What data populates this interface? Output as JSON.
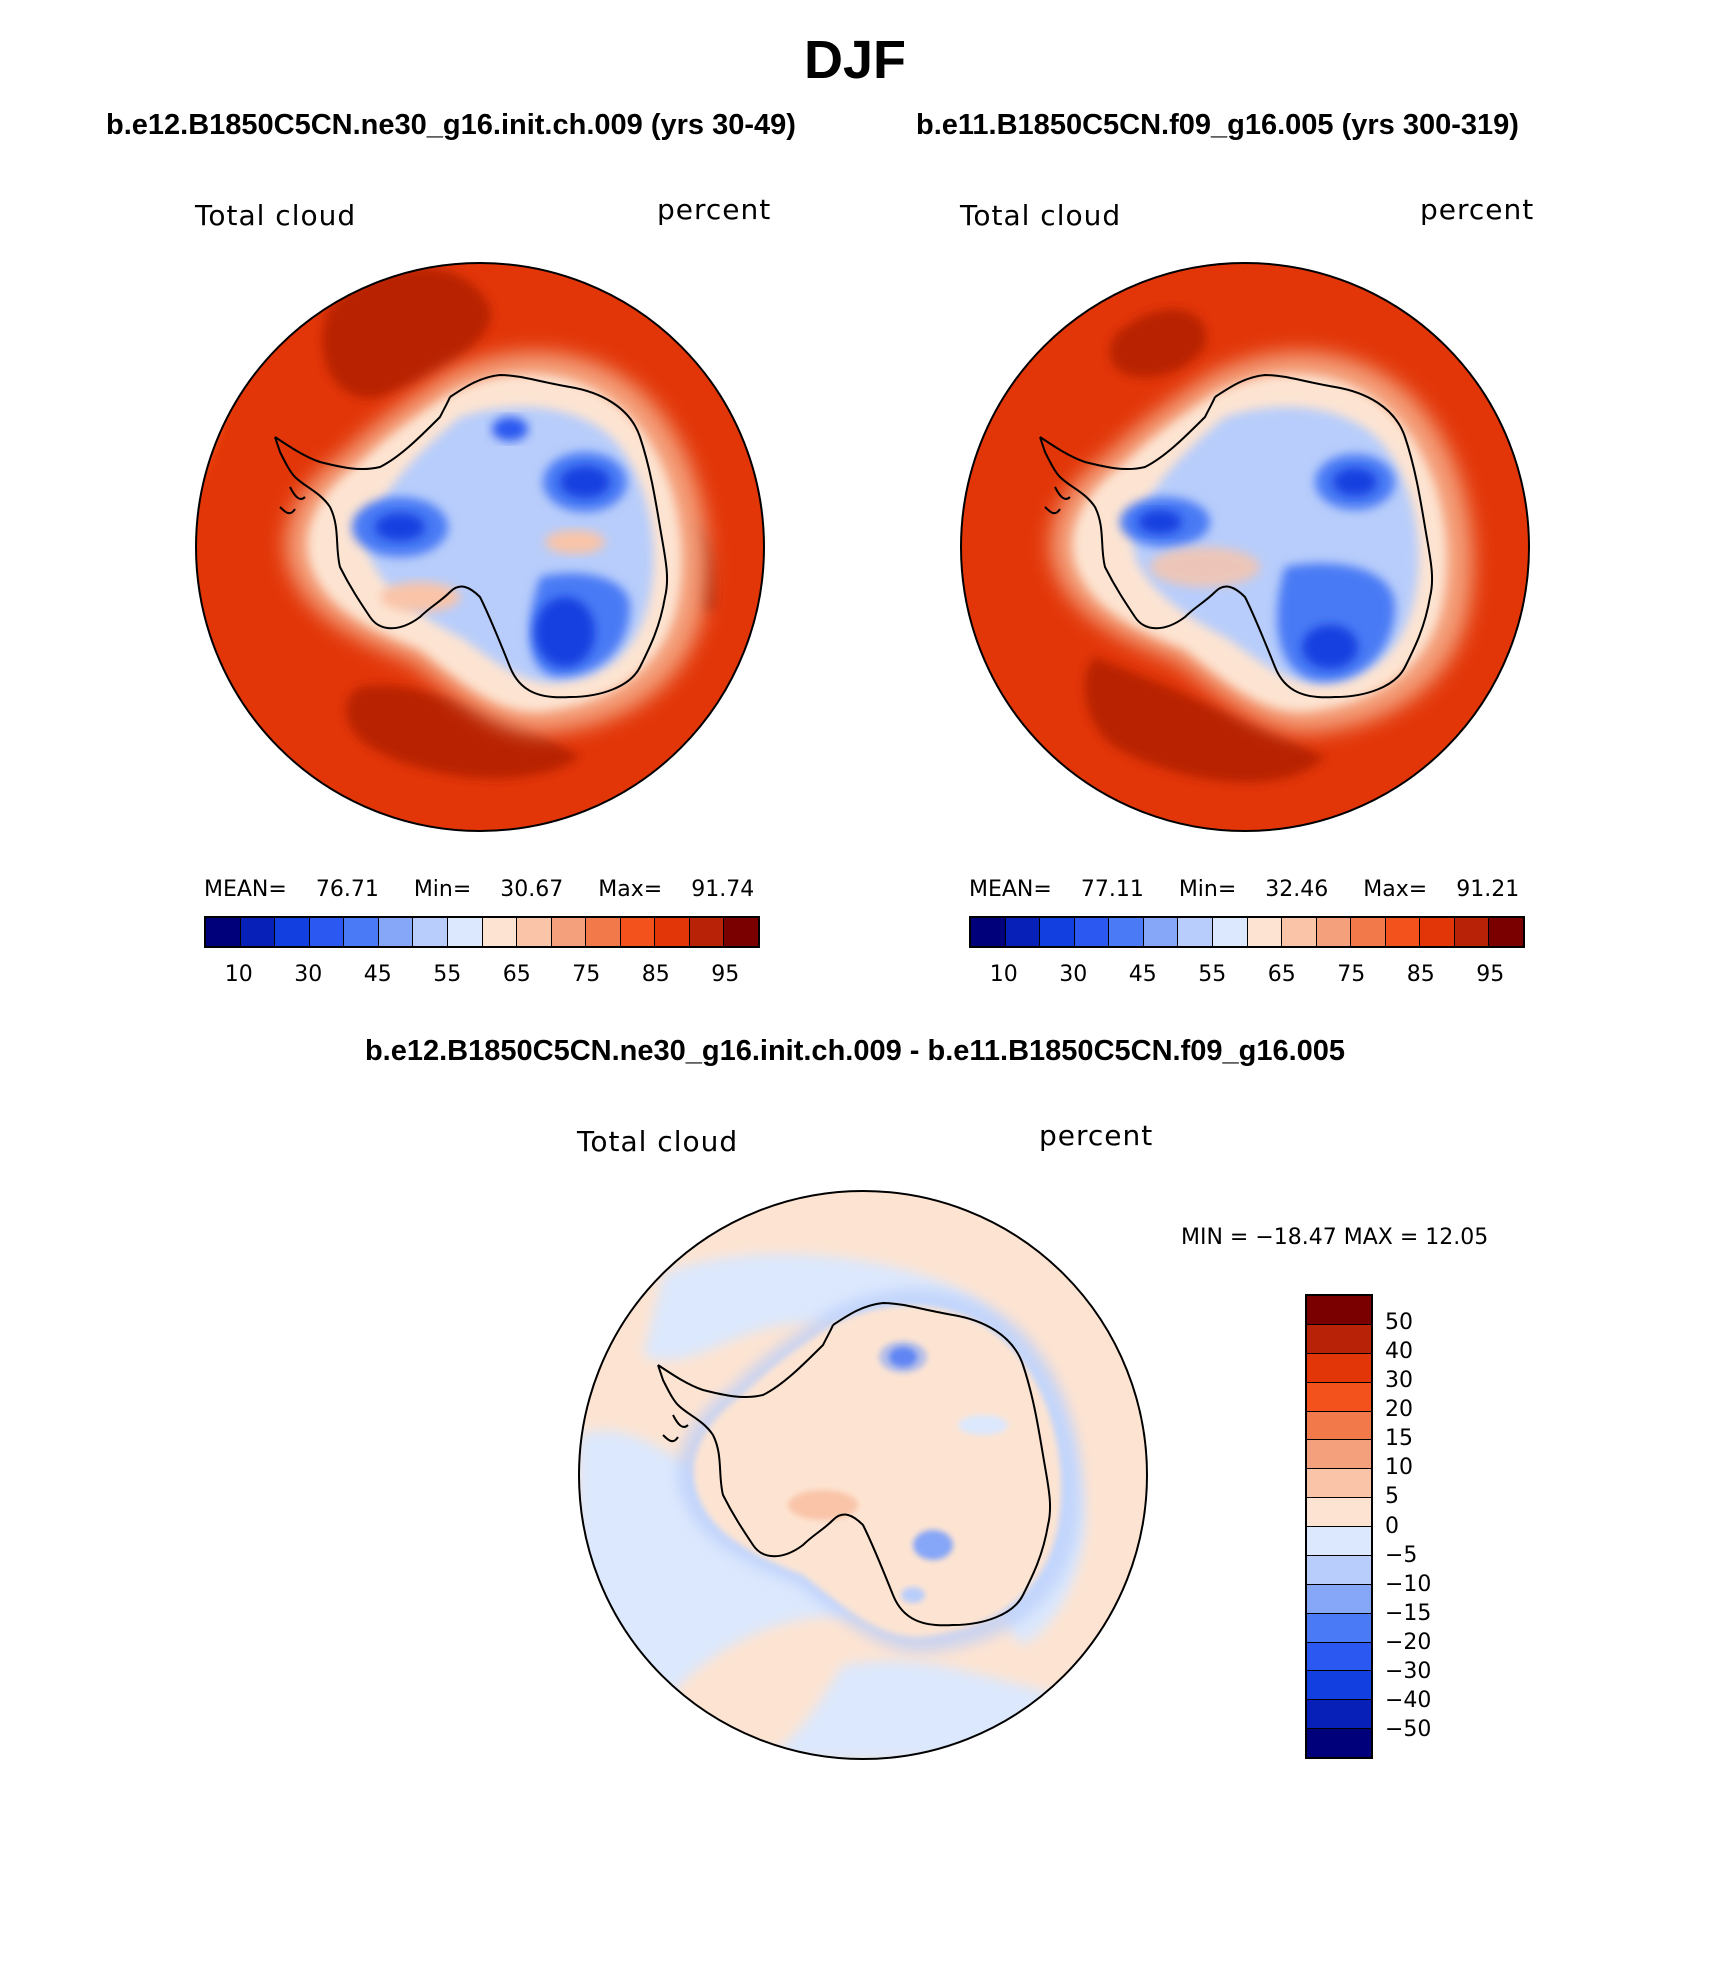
{
  "figure_title": "DJF",
  "colors": {
    "abs_scale": [
      "#00007a",
      "#0620b8",
      "#1240e0",
      "#2a58f0",
      "#4a7af5",
      "#86a6f7",
      "#b8cdfb",
      "#dce8fd",
      "#fde4d2",
      "#f9c4a8",
      "#f4a07c",
      "#f27a4a",
      "#f4521c",
      "#e23608",
      "#b82206",
      "#7a0000"
    ],
    "diff_scale": [
      "#7a0000",
      "#b82206",
      "#e23608",
      "#f4521c",
      "#f27a4a",
      "#f4a07c",
      "#f9c4a8",
      "#fde4d2",
      "#dce8fd",
      "#b8cdfb",
      "#86a6f7",
      "#4a7af5",
      "#2a58f0",
      "#1240e0",
      "#0620b8",
      "#00007a"
    ]
  },
  "panel_left": {
    "title": "b.e12.B1850C5CN.ne30_g16.init.ch.009 (yrs 30-49)",
    "var_label": "Total cloud",
    "units": "percent",
    "stats": {
      "mean_label": "MEAN=",
      "mean": "76.71",
      "min_label": "Min=",
      "min": "30.67",
      "max_label": "Max=",
      "max": "91.74"
    },
    "ticks": [
      "10",
      "30",
      "45",
      "55",
      "65",
      "75",
      "85",
      "95"
    ]
  },
  "panel_right": {
    "title": "b.e11.B1850C5CN.f09_g16.005 (yrs 300-319)",
    "var_label": "Total cloud",
    "units": "percent",
    "stats": {
      "mean_label": "MEAN=",
      "mean": "77.11",
      "min_label": "Min=",
      "min": "32.46",
      "max_label": "Max=",
      "max": "91.21"
    },
    "ticks": [
      "10",
      "30",
      "45",
      "55",
      "65",
      "75",
      "85",
      "95"
    ]
  },
  "panel_diff": {
    "title": "b.e12.B1850C5CN.ne30_g16.init.ch.009 - b.e11.B1850C5CN.f09_g16.005",
    "var_label": "Total cloud",
    "units": "percent",
    "minmax": "MIN = −18.47 MAX =   12.05",
    "ticks": [
      "50",
      "40",
      "30",
      "20",
      "15",
      "10",
      "5",
      "0",
      "−5",
      "−10",
      "−15",
      "−20",
      "−30",
      "−40",
      "−50"
    ]
  }
}
